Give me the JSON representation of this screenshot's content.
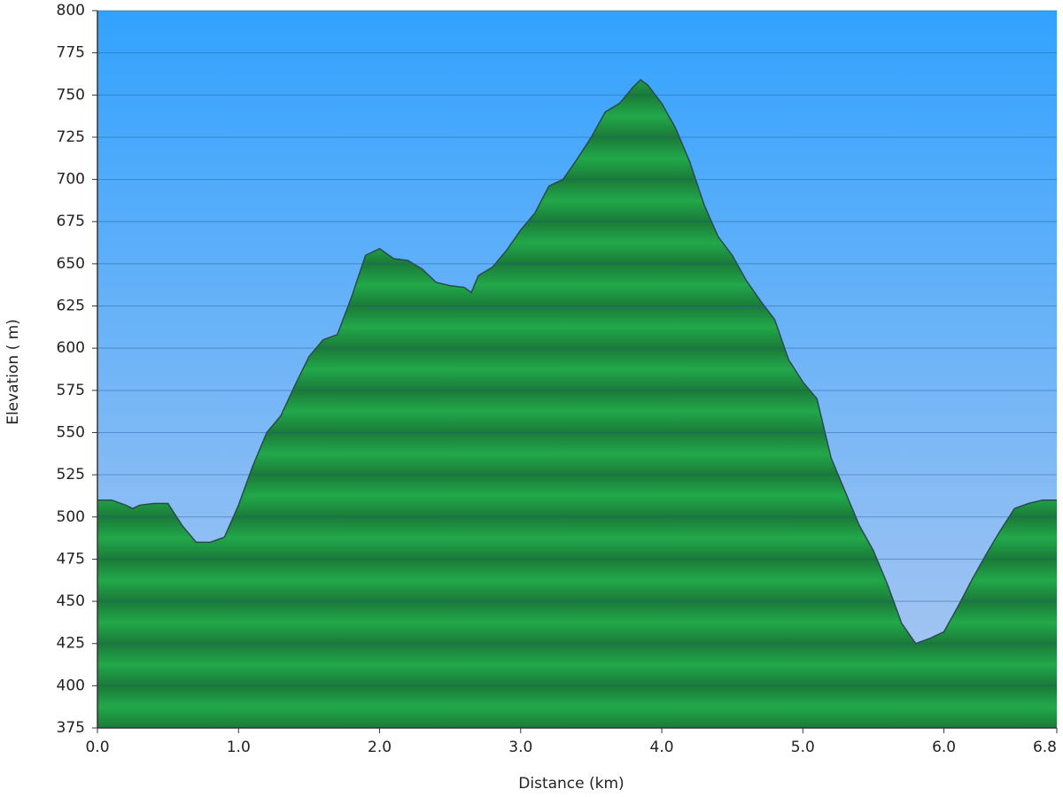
{
  "chart_data": {
    "type": "area",
    "x_label": "Distance   (km)",
    "y_label": "Elevation ( m)",
    "x": [
      0.0,
      0.1,
      0.2,
      0.25,
      0.3,
      0.4,
      0.5,
      0.6,
      0.7,
      0.8,
      0.9,
      1.0,
      1.1,
      1.2,
      1.3,
      1.4,
      1.5,
      1.6,
      1.7,
      1.8,
      1.9,
      2.0,
      2.1,
      2.2,
      2.3,
      2.4,
      2.5,
      2.6,
      2.65,
      2.7,
      2.8,
      2.9,
      3.0,
      3.1,
      3.2,
      3.3,
      3.4,
      3.5,
      3.6,
      3.7,
      3.8,
      3.85,
      3.9,
      4.0,
      4.1,
      4.2,
      4.3,
      4.4,
      4.5,
      4.6,
      4.7,
      4.8,
      4.9,
      5.0,
      5.1,
      5.2,
      5.3,
      5.4,
      5.5,
      5.6,
      5.7,
      5.8,
      5.9,
      6.0,
      6.1,
      6.2,
      6.3,
      6.4,
      6.5,
      6.6,
      6.7,
      6.8
    ],
    "series": [
      {
        "color": "#22a84a",
        "values": [
          510,
          510,
          507,
          505,
          507,
          508,
          508,
          495,
          485,
          485,
          488,
          507,
          530,
          550,
          560,
          578,
          595,
          605,
          608,
          630,
          655,
          659,
          653,
          652,
          647,
          639,
          637,
          636,
          633,
          643,
          648,
          658,
          670,
          680,
          696,
          700,
          712,
          725,
          740,
          745,
          755,
          759,
          756,
          745,
          730,
          710,
          685,
          666,
          655,
          640,
          628,
          617,
          593,
          580,
          570,
          535,
          515,
          495,
          480,
          460,
          437,
          425,
          428,
          432,
          447,
          463,
          478,
          492,
          505,
          508,
          510,
          510
        ]
      }
    ],
    "xlim": [
      0,
      6.8
    ],
    "ylim": [
      375,
      800
    ],
    "xticks": [
      {
        "value": 0,
        "label": "0.0"
      },
      {
        "value": 1,
        "label": "1.0"
      },
      {
        "value": 2,
        "label": "2.0"
      },
      {
        "value": 3,
        "label": "3.0"
      },
      {
        "value": 4,
        "label": "4.0"
      },
      {
        "value": 5,
        "label": "5.0"
      },
      {
        "value": 6,
        "label": "6.0"
      },
      6.8
    ],
    "yticks": [
      375,
      400,
      425,
      450,
      475,
      500,
      525,
      550,
      575,
      600,
      625,
      650,
      675,
      700,
      725,
      750,
      775,
      800
    ],
    "grid": true
  }
}
